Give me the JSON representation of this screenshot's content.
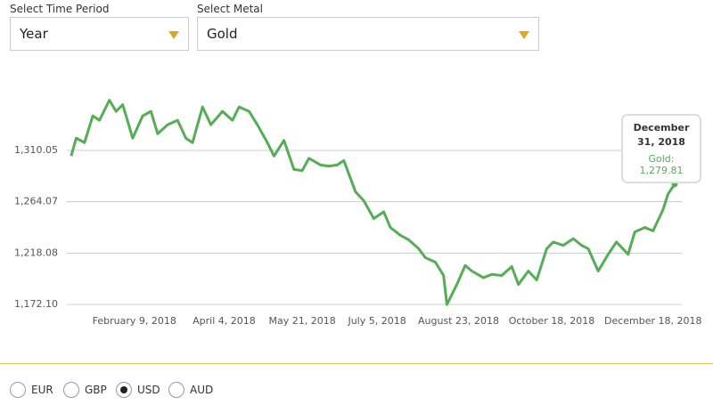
{
  "controls": {
    "time_period": {
      "label": "Select Time Period",
      "value": "Year"
    },
    "metal": {
      "label": "Select Metal",
      "value": "Gold"
    },
    "currencies": [
      "EUR",
      "GBP",
      "USD",
      "AUD"
    ],
    "selected_currency": "USD"
  },
  "chart_data": {
    "type": "line",
    "x": [
      "2018-01-02",
      "2018-01-05",
      "2018-01-10",
      "2018-01-15",
      "2018-01-19",
      "2018-01-25",
      "2018-01-29",
      "2018-02-02",
      "2018-02-08",
      "2018-02-14",
      "2018-02-19",
      "2018-02-23",
      "2018-03-01",
      "2018-03-07",
      "2018-03-12",
      "2018-03-16",
      "2018-03-22",
      "2018-03-27",
      "2018-04-03",
      "2018-04-09",
      "2018-04-13",
      "2018-04-19",
      "2018-04-24",
      "2018-04-30",
      "2018-05-04",
      "2018-05-10",
      "2018-05-16",
      "2018-05-21",
      "2018-05-25",
      "2018-06-01",
      "2018-06-06",
      "2018-06-11",
      "2018-06-15",
      "2018-06-22",
      "2018-06-27",
      "2018-07-03",
      "2018-07-09",
      "2018-07-13",
      "2018-07-19",
      "2018-07-24",
      "2018-07-30",
      "2018-08-03",
      "2018-08-09",
      "2018-08-14",
      "2018-08-16",
      "2018-08-22",
      "2018-08-27",
      "2018-08-31",
      "2018-09-07",
      "2018-09-12",
      "2018-09-18",
      "2018-09-24",
      "2018-09-28",
      "2018-10-04",
      "2018-10-09",
      "2018-10-15",
      "2018-10-19",
      "2018-10-25",
      "2018-10-31",
      "2018-11-05",
      "2018-11-09",
      "2018-11-15",
      "2018-11-21",
      "2018-11-26",
      "2018-12-03",
      "2018-12-07",
      "2018-12-13",
      "2018-12-18",
      "2018-12-24",
      "2018-12-27",
      "2018-12-31"
    ],
    "series": [
      {
        "name": "Gold",
        "color": "#55ad55",
        "values": [
          1305,
          1321,
          1317,
          1341,
          1337,
          1355,
          1345,
          1351,
          1321,
          1341,
          1345,
          1325,
          1333,
          1337,
          1321,
          1317,
          1349,
          1333,
          1345,
          1337,
          1349,
          1345,
          1333,
          1317,
          1305,
          1319,
          1293,
          1292,
          1303,
          1297,
          1296,
          1297,
          1301,
          1273,
          1265,
          1249,
          1255,
          1241,
          1234,
          1230,
          1222,
          1214,
          1210,
          1198,
          1172,
          1190,
          1207,
          1202,
          1196,
          1199,
          1198,
          1206,
          1190,
          1202,
          1194,
          1222,
          1228,
          1225,
          1231,
          1225,
          1222,
          1202,
          1217,
          1228,
          1217,
          1237,
          1241,
          1238,
          1257,
          1271,
          1279.81
        ]
      }
    ],
    "xlim": [
      "2018-01-01",
      "2018-12-31"
    ],
    "xticks": [
      {
        "value": "2018-02-09",
        "label": "February 9, 2018"
      },
      {
        "value": "2018-04-04",
        "label": "April 4, 2018"
      },
      {
        "value": "2018-05-21",
        "label": "May 21, 2018"
      },
      {
        "value": "2018-07-05",
        "label": "July 5, 2018"
      },
      {
        "value": "2018-08-23",
        "label": "August 23, 2018"
      },
      {
        "value": "2018-10-18",
        "label": "October 18, 2018"
      },
      {
        "value": "2018-12-18",
        "label": "December 18, 2018"
      }
    ],
    "ylim": [
      1172.1,
      1373
    ],
    "yticks": [
      {
        "value": 1172.1,
        "label": "1,172.10"
      },
      {
        "value": 1218.08,
        "label": "1,218.08"
      },
      {
        "value": 1264.07,
        "label": "1,264.07"
      },
      {
        "value": 1310.05,
        "label": "1,310.05"
      }
    ],
    "grid": true,
    "tooltip": {
      "title": "December 31, 2018",
      "text": "Gold: 1,279.81"
    }
  }
}
